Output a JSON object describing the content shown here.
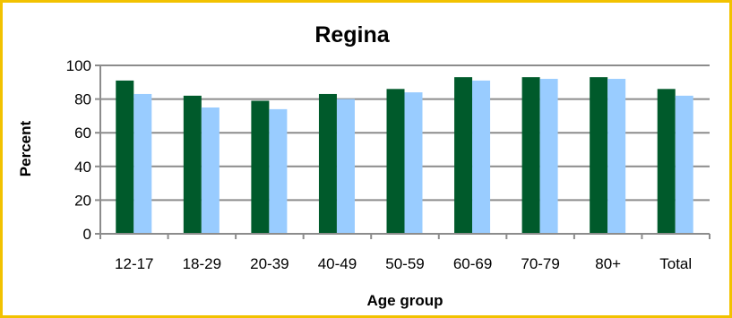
{
  "chart_data": {
    "type": "bar",
    "title": "Regina",
    "xlabel": "Age group",
    "ylabel": "Percent",
    "ylim": [
      0,
      100
    ],
    "yticks": [
      0,
      20,
      40,
      60,
      80,
      100
    ],
    "grid": true,
    "legend": "none",
    "categories": [
      "12-17",
      "18-29",
      "20-39",
      "40-49",
      "50-59",
      "60-69",
      "70-79",
      "80+",
      "Total"
    ],
    "series": [
      {
        "color": "#005a2b",
        "values": [
          91,
          82,
          79,
          83,
          86,
          93,
          93,
          93,
          86
        ]
      },
      {
        "color": "#99ccff",
        "values": [
          83,
          75,
          74,
          80,
          84,
          91,
          92,
          92,
          82
        ]
      }
    ]
  }
}
